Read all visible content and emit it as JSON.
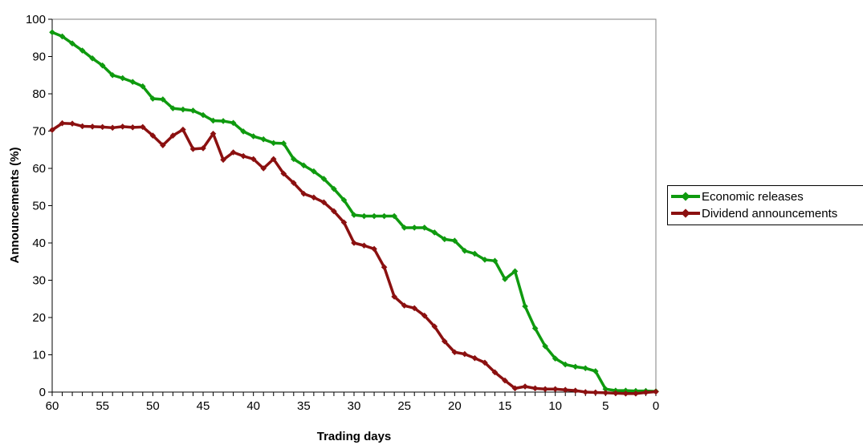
{
  "chart_data": {
    "type": "line",
    "title": "",
    "xlabel": "Trading days",
    "ylabel": "Announcements (%)",
    "xlim": [
      60,
      0
    ],
    "ylim": [
      0,
      100
    ],
    "x_ticks": [
      "60",
      "55",
      "50",
      "45",
      "40",
      "35",
      "30",
      "25",
      "20",
      "15",
      "10",
      "5",
      "0"
    ],
    "y_ticks": [
      "0",
      "10",
      "20",
      "30",
      "40",
      "50",
      "60",
      "70",
      "80",
      "90",
      "100"
    ],
    "grid": false,
    "legend_position": "right",
    "x": [
      60,
      59,
      58,
      57,
      56,
      55,
      54,
      53,
      52,
      51,
      50,
      49,
      48,
      47,
      46,
      45,
      44,
      43,
      42,
      41,
      40,
      39,
      38,
      37,
      36,
      35,
      34,
      33,
      32,
      31,
      30,
      29,
      28,
      27,
      26,
      25,
      24,
      23,
      22,
      21,
      20,
      19,
      18,
      17,
      16,
      15,
      14,
      13,
      12,
      11,
      10,
      9,
      8,
      7,
      6,
      5,
      4,
      3,
      2,
      1,
      0
    ],
    "series": [
      {
        "name": "Economic releases",
        "color": "#0f9a0f",
        "values": [
          96.5,
          95.4,
          93.5,
          91.6,
          89.5,
          87.6,
          85,
          84.2,
          83.2,
          82,
          78.7,
          78.5,
          76.1,
          75.8,
          75.5,
          74.3,
          72.8,
          72.7,
          72.2,
          69.9,
          68.6,
          67.8,
          66.8,
          66.7,
          62.5,
          60.8,
          59.2,
          57.2,
          54.5,
          51.5,
          47.5,
          47.2,
          47.2,
          47.2,
          47.2,
          44.1,
          44.1,
          44.1,
          42.8,
          41,
          40.6,
          37.9,
          37.1,
          35.5,
          35.2,
          30.3,
          32.4,
          23,
          17.1,
          12.3,
          9,
          7.4,
          6.8,
          6.4,
          5.6,
          0.8,
          0.4,
          0.4,
          0.3,
          0.3,
          0.2
        ]
      },
      {
        "name": "Dividend announcements",
        "color": "#8b1010",
        "values": [
          70.3,
          72.1,
          72,
          71.3,
          71.2,
          71.1,
          70.9,
          71.2,
          71,
          71.1,
          68.8,
          66.2,
          68.8,
          70.4,
          65.2,
          65.4,
          69.3,
          62.3,
          64.3,
          63.3,
          62.5,
          60,
          62.5,
          58.6,
          56.1,
          53.2,
          52.2,
          50.9,
          48.5,
          45.5,
          40,
          39.3,
          38.4,
          33.5,
          25.6,
          23.2,
          22.5,
          20.5,
          17.6,
          13.6,
          10.7,
          10.2,
          9.1,
          7.9,
          5.3,
          3.1,
          1,
          1.5,
          1,
          0.8,
          0.8,
          0.6,
          0.4,
          0,
          -0.1,
          -0.2,
          -0.3,
          -0.4,
          -0.4,
          -0.1,
          0.1
        ]
      }
    ]
  }
}
